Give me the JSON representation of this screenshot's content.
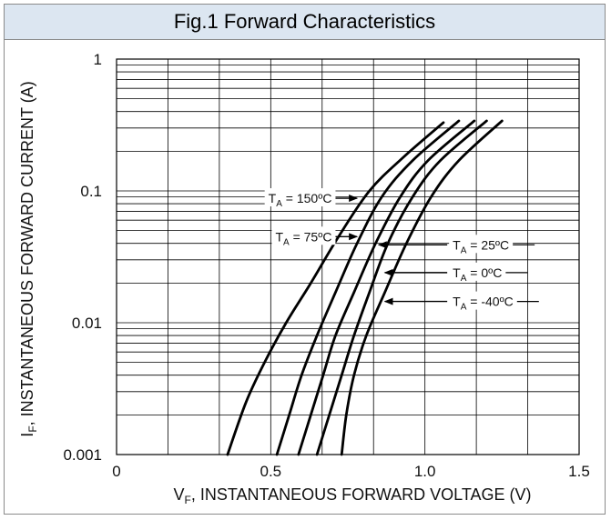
{
  "chart_data": {
    "type": "line",
    "title": "Fig.1 Forward Characteristics",
    "xlabel": "V_F, INSTANTANEOUS FORWARD VOLTAGE (V)",
    "xlabel_main": "V",
    "xlabel_sub": "F",
    "xlabel_rest": ", INSTANTANEOUS FORWARD VOLTAGE (V)",
    "ylabel": "I_F, INSTANTANEOUS FORWARD CURRENT (A)",
    "ylabel_main": "I",
    "ylabel_sub": "F",
    "ylabel_rest": ", INSTANTANEOUS FORWARD CURRENT (A)",
    "xlim": [
      0,
      1.5
    ],
    "ylim": [
      0.001,
      1
    ],
    "yscale": "log",
    "grid": true,
    "x_ticks": [
      {
        "value": 0,
        "label": "0"
      },
      {
        "value": 0.5,
        "label": "0.5"
      },
      {
        "value": 1.0,
        "label": "1.0"
      },
      {
        "value": 1.5,
        "label": "1.5"
      }
    ],
    "y_ticks": [
      {
        "value": 0.001,
        "label": "0.001"
      },
      {
        "value": 0.01,
        "label": "0.01"
      },
      {
        "value": 0.1,
        "label": "0.1"
      },
      {
        "value": 1,
        "label": "1"
      }
    ],
    "series": [
      {
        "key": "t150",
        "label_main": "T",
        "label_sub": "A",
        "label_rest": " = 150ºC",
        "x": [
          0.36,
          0.42,
          0.48,
          0.55,
          0.63,
          0.72,
          0.82,
          0.93,
          1.06
        ],
        "y": [
          0.001,
          0.0025,
          0.005,
          0.01,
          0.02,
          0.045,
          0.1,
          0.18,
          0.33
        ]
      },
      {
        "key": "t75",
        "label_main": "T",
        "label_sub": "A",
        "label_rest": " = 75ºC",
        "x": [
          0.52,
          0.56,
          0.6,
          0.65,
          0.71,
          0.78,
          0.86,
          0.96,
          1.11
        ],
        "y": [
          0.001,
          0.002,
          0.004,
          0.008,
          0.017,
          0.04,
          0.09,
          0.17,
          0.34
        ]
      },
      {
        "key": "t25",
        "label_main": "T",
        "label_sub": "A",
        "label_rest": " = 25ºC",
        "x": [
          0.59,
          0.63,
          0.67,
          0.71,
          0.77,
          0.84,
          0.92,
          1.01,
          1.16
        ],
        "y": [
          0.001,
          0.002,
          0.004,
          0.008,
          0.017,
          0.04,
          0.09,
          0.17,
          0.34
        ]
      },
      {
        "key": "t0",
        "label_main": "T",
        "label_sub": "A",
        "label_rest": " = 0ºC",
        "x": [
          0.65,
          0.69,
          0.73,
          0.77,
          0.82,
          0.88,
          0.96,
          1.05,
          1.2
        ],
        "y": [
          0.001,
          0.002,
          0.004,
          0.008,
          0.017,
          0.04,
          0.09,
          0.17,
          0.34
        ]
      },
      {
        "key": "tm40",
        "label_main": "T",
        "label_sub": "A",
        "label_rest": " = -40ºC",
        "x": [
          0.73,
          0.745,
          0.77,
          0.81,
          0.87,
          0.94,
          1.02,
          1.11,
          1.25
        ],
        "y": [
          0.001,
          0.002,
          0.004,
          0.008,
          0.017,
          0.04,
          0.09,
          0.17,
          0.34
        ]
      }
    ],
    "annotations": [
      {
        "series": "t150",
        "side": "left",
        "x": 0.71,
        "y": 0.088
      },
      {
        "series": "t75",
        "side": "left",
        "x": 0.71,
        "y": 0.045
      },
      {
        "series": "t25",
        "side": "right",
        "x": 1.09,
        "y": 0.039
      },
      {
        "series": "t0",
        "side": "right",
        "x": 1.09,
        "y": 0.024
      },
      {
        "series": "tm40",
        "side": "right",
        "x": 1.09,
        "y": 0.0145
      }
    ],
    "annotation_targets": {
      "t150": {
        "x": 0.78,
        "y": 0.088
      },
      "t75": {
        "x": 0.78,
        "y": 0.045
      },
      "t25": {
        "x": 0.85,
        "y": 0.039
      },
      "t0": {
        "x": 0.87,
        "y": 0.024
      },
      "tm40": {
        "x": 0.87,
        "y": 0.0145
      }
    },
    "colors": {
      "curve": "#000000",
      "grid": "#000000",
      "title_bg": "#dce6f1",
      "border": "#8a8a8a"
    }
  }
}
